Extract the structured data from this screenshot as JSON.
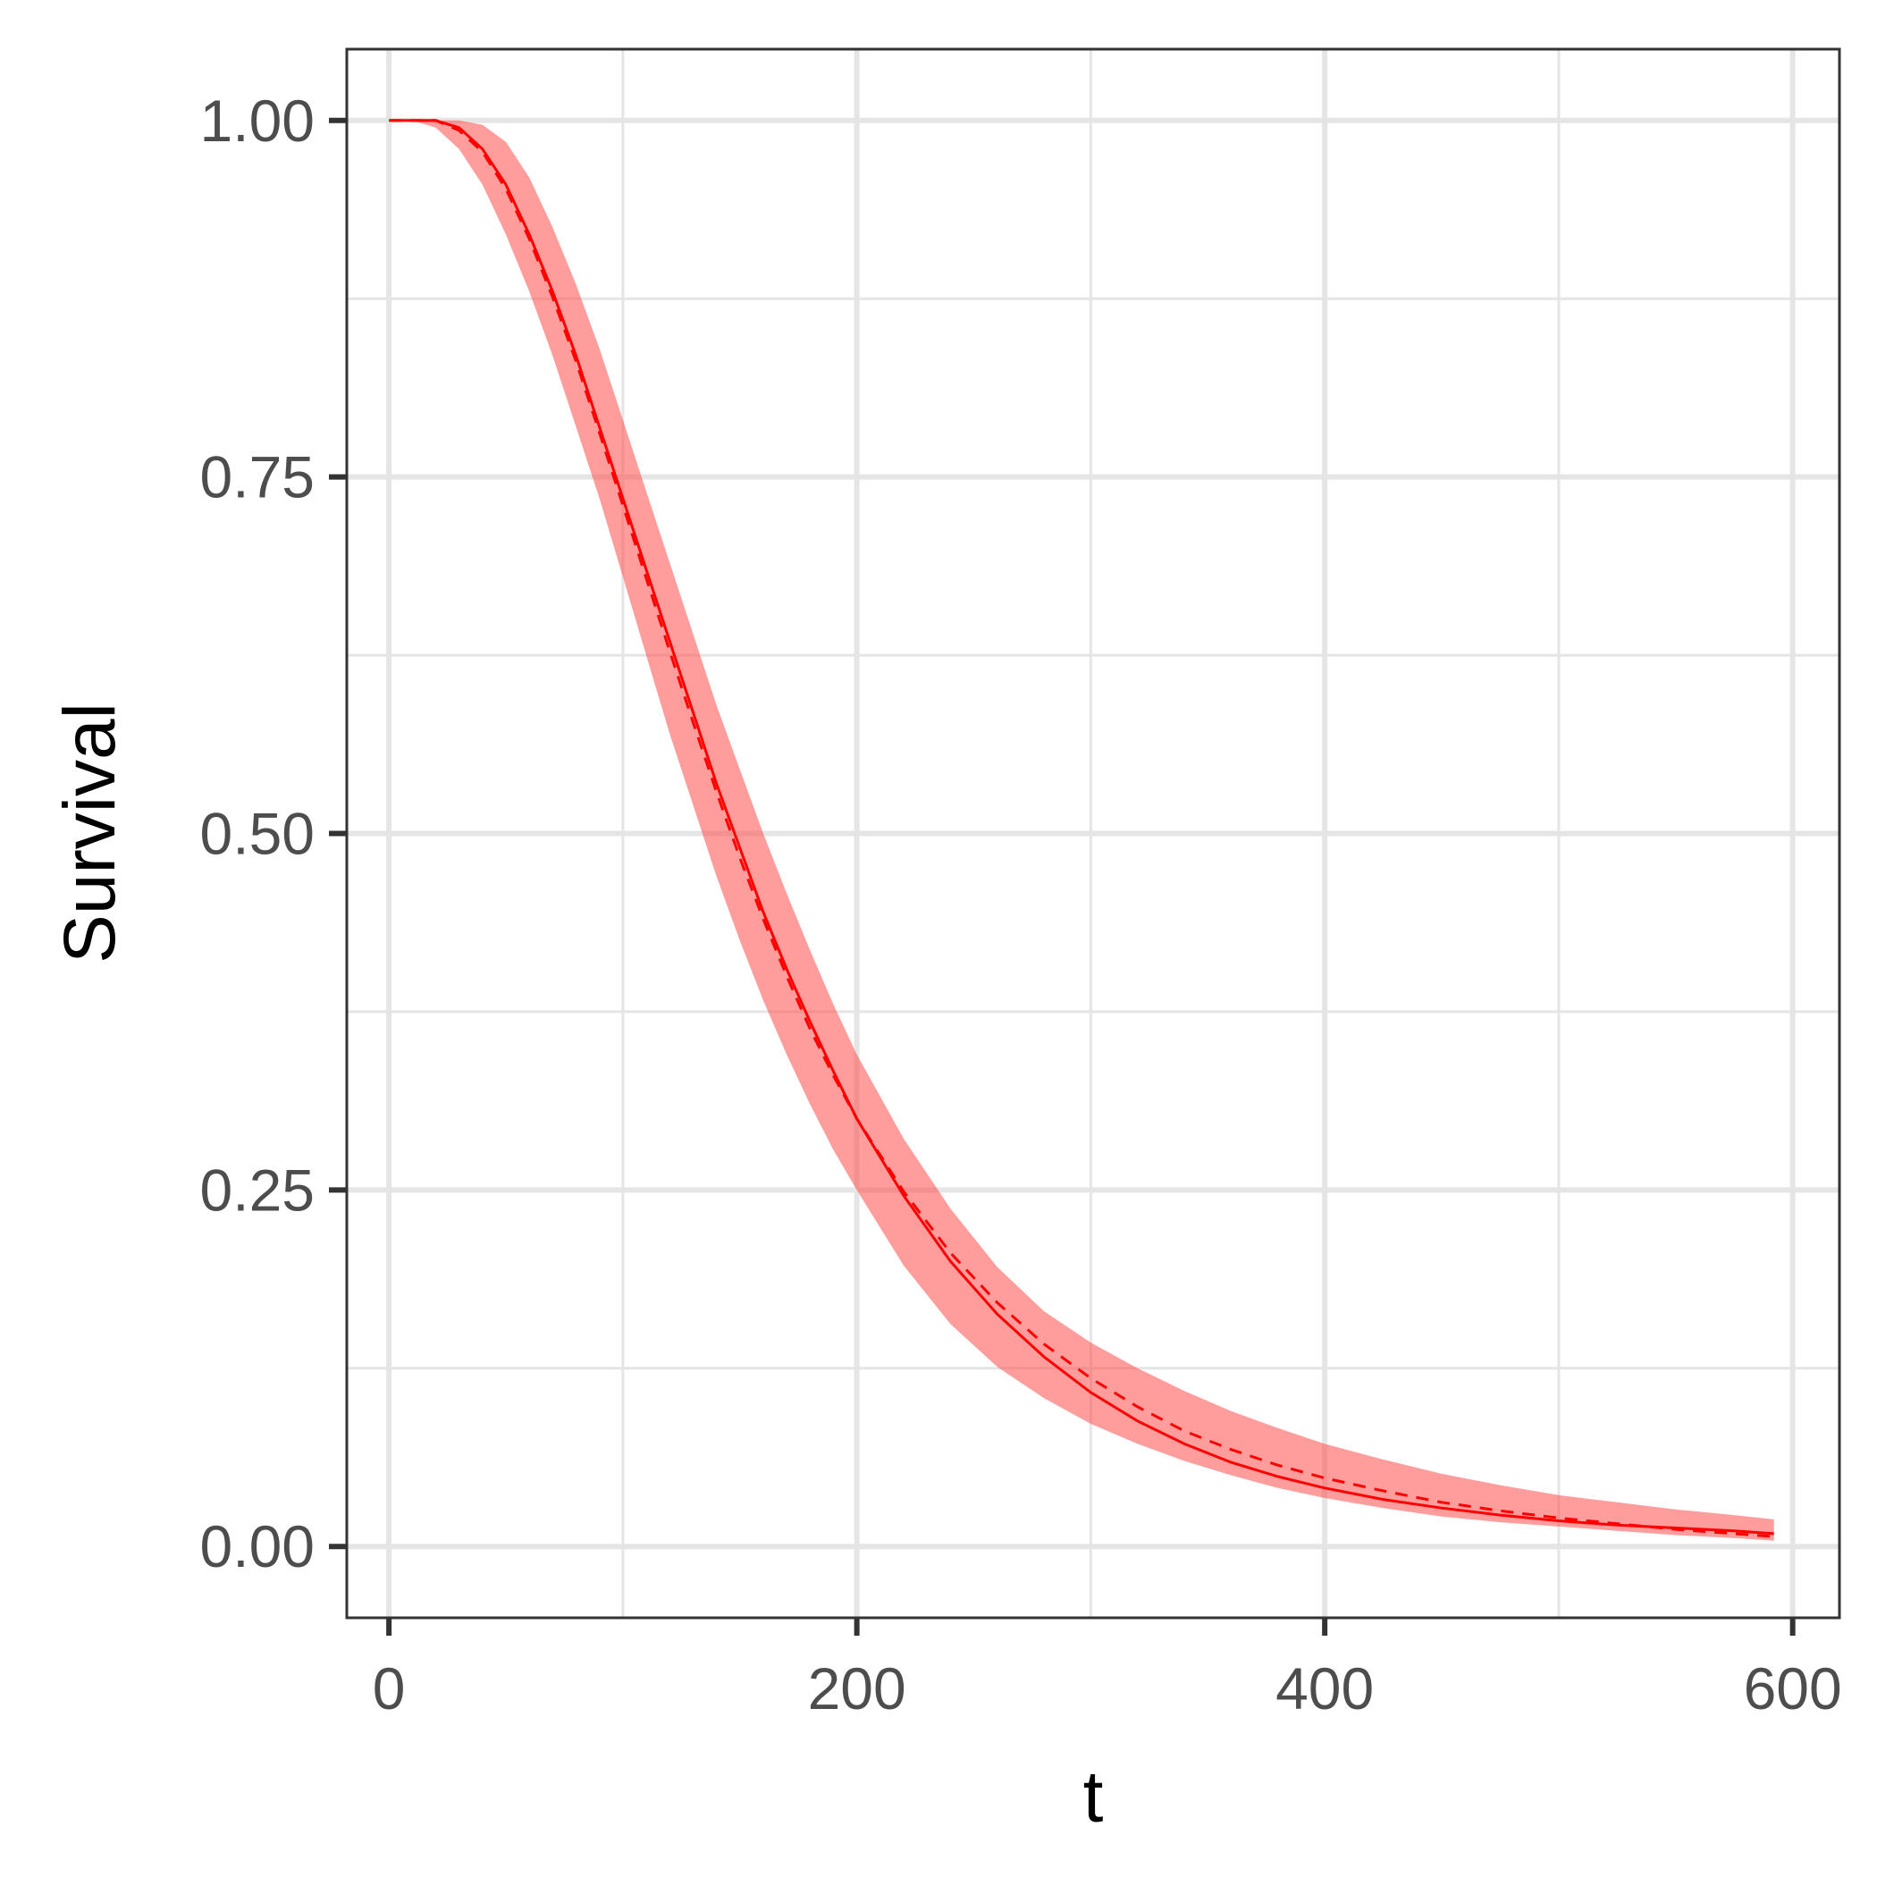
{
  "chart_data": {
    "type": "line",
    "xlabel": "t",
    "ylabel": "Survival",
    "xlim": [
      -18,
      620
    ],
    "ylim": [
      -0.05,
      1.05
    ],
    "x_ticks": [
      0,
      200,
      400,
      600
    ],
    "x_tick_labels": [
      "0",
      "200",
      "400",
      "600"
    ],
    "y_ticks": [
      0,
      0.25,
      0.5,
      0.75,
      1.0
    ],
    "y_tick_labels": [
      "0.00",
      "0.25",
      "0.50",
      "0.75",
      "1.00"
    ],
    "grid": true,
    "colors": {
      "line": "#ff0000",
      "band": "#ff4d4d",
      "grid": "#e5e5e5",
      "frame": "#333333"
    },
    "x": [
      0,
      10,
      20,
      30,
      40,
      50,
      60,
      70,
      80,
      90,
      100,
      110,
      120,
      130,
      140,
      150,
      160,
      170,
      180,
      190,
      200,
      220,
      240,
      260,
      280,
      300,
      320,
      340,
      360,
      380,
      400,
      425,
      450,
      475,
      500,
      525,
      550,
      575,
      592
    ],
    "series": [
      {
        "style": "solid",
        "values": [
          1.0,
          1.0,
          1.0,
          0.995,
          0.98,
          0.955,
          0.92,
          0.88,
          0.835,
          0.785,
          0.735,
          0.685,
          0.635,
          0.585,
          0.535,
          0.49,
          0.445,
          0.405,
          0.368,
          0.333,
          0.3,
          0.246,
          0.2,
          0.163,
          0.133,
          0.108,
          0.088,
          0.072,
          0.059,
          0.049,
          0.041,
          0.033,
          0.027,
          0.022,
          0.018,
          0.015,
          0.013,
          0.011,
          0.009
        ]
      },
      {
        "style": "dashed",
        "values": [
          1.0,
          1.0,
          1.0,
          0.993,
          0.978,
          0.952,
          0.917,
          0.876,
          0.831,
          0.781,
          0.73,
          0.679,
          0.628,
          0.578,
          0.529,
          0.483,
          0.44,
          0.4,
          0.363,
          0.33,
          0.3,
          0.249,
          0.206,
          0.171,
          0.142,
          0.118,
          0.098,
          0.081,
          0.068,
          0.057,
          0.048,
          0.039,
          0.031,
          0.025,
          0.02,
          0.016,
          0.012,
          0.009,
          0.007
        ]
      },
      {
        "style": "band",
        "lower": [
          1.0,
          1.0,
          0.995,
          0.98,
          0.955,
          0.92,
          0.88,
          0.835,
          0.785,
          0.735,
          0.68,
          0.625,
          0.57,
          0.52,
          0.47,
          0.425,
          0.383,
          0.345,
          0.31,
          0.278,
          0.25,
          0.197,
          0.156,
          0.126,
          0.104,
          0.086,
          0.072,
          0.06,
          0.05,
          0.041,
          0.034,
          0.027,
          0.021,
          0.017,
          0.014,
          0.011,
          0.008,
          0.006,
          0.004
        ],
        "upper": [
          1.0,
          1.0,
          1.0,
          1.0,
          0.997,
          0.985,
          0.96,
          0.925,
          0.885,
          0.84,
          0.79,
          0.74,
          0.69,
          0.64,
          0.59,
          0.545,
          0.5,
          0.458,
          0.418,
          0.38,
          0.345,
          0.286,
          0.237,
          0.196,
          0.165,
          0.143,
          0.125,
          0.109,
          0.095,
          0.083,
          0.072,
          0.061,
          0.051,
          0.043,
          0.036,
          0.031,
          0.026,
          0.022,
          0.019
        ]
      }
    ]
  }
}
